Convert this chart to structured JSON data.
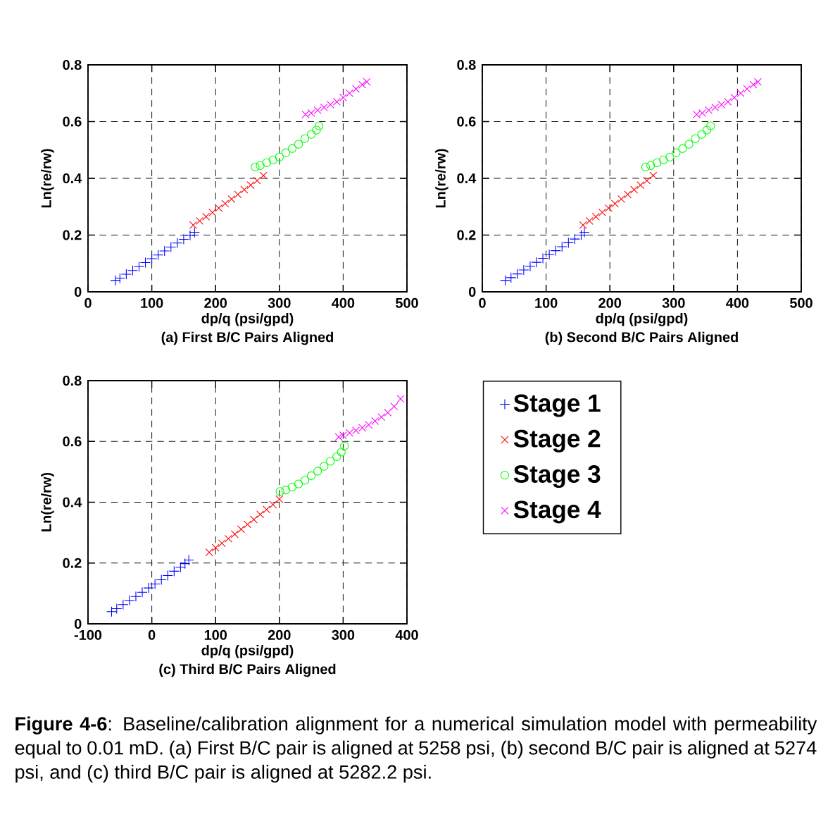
{
  "chart_data": [
    {
      "type": "scatter",
      "title": "(a) First B/C Pairs Aligned",
      "xlabel": "dp/q (psi/gpd)",
      "ylabel": "Ln(re/rw)",
      "xlim": [
        0,
        500
      ],
      "ylim": [
        0,
        0.8
      ],
      "xticks": [
        0,
        100,
        200,
        300,
        400,
        500
      ],
      "yticks": [
        0,
        0.2,
        0.4,
        0.6,
        0.8
      ],
      "grid": true,
      "series": [
        {
          "color": "#0000ff",
          "marker": "plus",
          "x": [
            43,
            50,
            60,
            70,
            80,
            90,
            100,
            110,
            120,
            130,
            140,
            150,
            160,
            167
          ],
          "values": [
            0.04,
            0.048,
            0.062,
            0.075,
            0.089,
            0.103,
            0.117,
            0.13,
            0.144,
            0.158,
            0.172,
            0.185,
            0.199,
            0.21
          ]
        },
        {
          "color": "#ff0000",
          "marker": "cross",
          "x": [
            165,
            175,
            185,
            195,
            205,
            215,
            225,
            235,
            245,
            255,
            265,
            275
          ],
          "values": [
            0.235,
            0.25,
            0.265,
            0.28,
            0.295,
            0.311,
            0.327,
            0.343,
            0.36,
            0.376,
            0.392,
            0.41
          ]
        },
        {
          "color": "#00ff00",
          "marker": "circle",
          "x": [
            262,
            270,
            280,
            290,
            300,
            310,
            320,
            330,
            340,
            350,
            358,
            362
          ],
          "values": [
            0.44,
            0.445,
            0.455,
            0.465,
            0.475,
            0.49,
            0.505,
            0.52,
            0.54,
            0.555,
            0.57,
            0.585
          ]
        },
        {
          "color": "#ff00ff",
          "marker": "cross",
          "x": [
            341,
            350,
            360,
            370,
            380,
            390,
            400,
            410,
            420,
            430,
            437
          ],
          "values": [
            0.625,
            0.63,
            0.64,
            0.65,
            0.66,
            0.67,
            0.685,
            0.7,
            0.715,
            0.73,
            0.74
          ]
        }
      ]
    },
    {
      "type": "scatter",
      "title": "(b) Second B/C Pairs Aligned",
      "xlabel": "dp/q (psi/gpd)",
      "ylabel": "Ln(re/rw)",
      "xlim": [
        0,
        500
      ],
      "ylim": [
        0,
        0.8
      ],
      "xticks": [
        0,
        100,
        200,
        300,
        400,
        500
      ],
      "yticks": [
        0,
        0.2,
        0.4,
        0.6,
        0.8
      ],
      "grid": true,
      "series": [
        {
          "color": "#0000ff",
          "marker": "plus",
          "x": [
            36,
            45,
            55,
            65,
            75,
            85,
            95,
            105,
            115,
            125,
            135,
            145,
            155,
            160
          ],
          "values": [
            0.04,
            0.05,
            0.063,
            0.077,
            0.09,
            0.104,
            0.118,
            0.131,
            0.145,
            0.159,
            0.173,
            0.186,
            0.2,
            0.21
          ]
        },
        {
          "color": "#ff0000",
          "marker": "cross",
          "x": [
            158,
            168,
            178,
            188,
            198,
            208,
            218,
            228,
            238,
            248,
            258,
            268
          ],
          "values": [
            0.235,
            0.25,
            0.265,
            0.28,
            0.295,
            0.311,
            0.327,
            0.343,
            0.36,
            0.376,
            0.392,
            0.41
          ]
        },
        {
          "color": "#00ff00",
          "marker": "circle",
          "x": [
            256,
            264,
            274,
            284,
            294,
            304,
            314,
            324,
            334,
            344,
            352,
            358
          ],
          "values": [
            0.44,
            0.445,
            0.455,
            0.465,
            0.475,
            0.49,
            0.505,
            0.52,
            0.54,
            0.555,
            0.57,
            0.585
          ]
        },
        {
          "color": "#ff00ff",
          "marker": "cross",
          "x": [
            336,
            345,
            355,
            365,
            375,
            385,
            395,
            405,
            415,
            425,
            432
          ],
          "values": [
            0.625,
            0.63,
            0.64,
            0.65,
            0.66,
            0.67,
            0.685,
            0.7,
            0.715,
            0.73,
            0.74
          ]
        }
      ]
    },
    {
      "type": "scatter",
      "title": "(c) Third B/C Pairs Aligned",
      "xlabel": "dp/q (psi/gpd)",
      "ylabel": "Ln(re/rw)",
      "xlim": [
        -100,
        400
      ],
      "ylim": [
        0,
        0.8
      ],
      "xticks": [
        -100,
        0,
        100,
        200,
        300,
        400
      ],
      "yticks": [
        0,
        0.2,
        0.4,
        0.6,
        0.8
      ],
      "grid": true,
      "legend": "right",
      "annotations": [
        "**Figure 4-6**: Baseline/calibration alignment for a numerical simulation model with permeability equal to 0.01 mD. (a) First B/C pair is aligned at 5258 psi, (b) second B/C pair is aligned at 5274 psi, and (c) third B/C pair is aligned at 5282.2 psi."
      ],
      "series": [
        {
          "name": "Stage 1",
          "color": "#0000ff",
          "marker": "plus",
          "x": [
            -63,
            -55,
            -45,
            -35,
            -25,
            -15,
            -5,
            5,
            15,
            25,
            35,
            45,
            52,
            58
          ],
          "values": [
            0.04,
            0.05,
            0.063,
            0.077,
            0.09,
            0.104,
            0.118,
            0.131,
            0.145,
            0.159,
            0.173,
            0.186,
            0.198,
            0.21
          ]
        },
        {
          "name": "Stage 2",
          "color": "#ff0000",
          "marker": "cross",
          "x": [
            90,
            100,
            110,
            120,
            130,
            140,
            150,
            160,
            170,
            180,
            190,
            200
          ],
          "values": [
            0.235,
            0.25,
            0.265,
            0.28,
            0.295,
            0.311,
            0.327,
            0.343,
            0.36,
            0.376,
            0.392,
            0.41
          ]
        },
        {
          "name": "Stage 3",
          "color": "#00ff00",
          "marker": "circle",
          "x": [
            201,
            210,
            220,
            230,
            240,
            250,
            260,
            270,
            280,
            290,
            297,
            302
          ],
          "values": [
            0.435,
            0.44,
            0.45,
            0.46,
            0.472,
            0.487,
            0.502,
            0.518,
            0.535,
            0.55,
            0.565,
            0.585
          ]
        },
        {
          "name": "Stage 4",
          "color": "#ff00ff",
          "marker": "cross",
          "x": [
            293,
            300,
            310,
            320,
            330,
            340,
            350,
            360,
            370,
            380,
            390
          ],
          "values": [
            0.615,
            0.62,
            0.628,
            0.636,
            0.645,
            0.655,
            0.667,
            0.68,
            0.695,
            0.715,
            0.74
          ]
        }
      ]
    }
  ]
}
